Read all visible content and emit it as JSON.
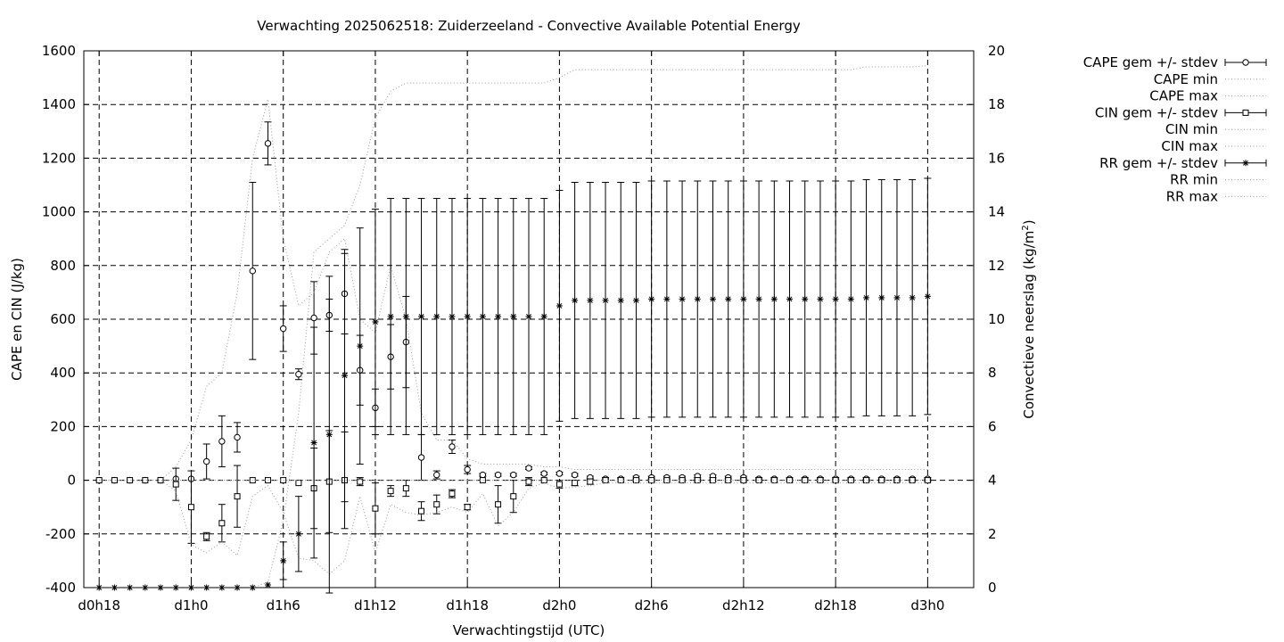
{
  "chart_data": {
    "type": "line",
    "title": "Verwachting 2025062518: Zuiderzeeland - Convective Available Potential Energy",
    "xlabel": "Verwachtingstijd (UTC)",
    "ylabel": "CAPE en CIN (J/kg)",
    "y2label_main": "Convectieve neerslag (kg/m",
    "y2label_sup": "2",
    "y2label_end": ")",
    "x_unit": "forecast hour (0 = d0h18)",
    "xlim": [
      -1,
      57
    ],
    "ylim": [
      -400,
      1600
    ],
    "y2lim": [
      0,
      20
    ],
    "grid": true,
    "legend_position": "outside-right",
    "x_ticks": [
      {
        "x": 0,
        "label": "d0h18"
      },
      {
        "x": 6,
        "label": "d1h0"
      },
      {
        "x": 12,
        "label": "d1h6"
      },
      {
        "x": 18,
        "label": "d1h12"
      },
      {
        "x": 24,
        "label": "d1h18"
      },
      {
        "x": 30,
        "label": "d2h0"
      },
      {
        "x": 36,
        "label": "d2h6"
      },
      {
        "x": 42,
        "label": "d2h12"
      },
      {
        "x": 48,
        "label": "d2h18"
      },
      {
        "x": 54,
        "label": "d3h0"
      }
    ],
    "y_ticks": [
      -400,
      -200,
      0,
      200,
      400,
      600,
      800,
      1000,
      1200,
      1400,
      1600
    ],
    "y2_ticks": [
      0,
      2,
      4,
      6,
      8,
      10,
      12,
      14,
      16,
      18,
      20
    ],
    "x": [
      0,
      1,
      2,
      3,
      4,
      5,
      6,
      7,
      8,
      9,
      10,
      11,
      12,
      13,
      14,
      15,
      16,
      17,
      18,
      19,
      20,
      21,
      22,
      23,
      24,
      25,
      26,
      27,
      28,
      29,
      30,
      31,
      32,
      33,
      34,
      35,
      36,
      37,
      38,
      39,
      40,
      41,
      42,
      43,
      44,
      45,
      46,
      47,
      48,
      49,
      50,
      51,
      52,
      53,
      54
    ],
    "series": [
      {
        "name": "CAPE gem +/- stdev",
        "axis": "y1",
        "marker": "circle",
        "style": "errorbars",
        "values": [
          0,
          0,
          0,
          0,
          0,
          5,
          5,
          70,
          145,
          160,
          780,
          1255,
          565,
          395,
          605,
          615,
          695,
          410,
          270,
          460,
          515,
          85,
          20,
          125,
          40,
          20,
          20,
          20,
          45,
          25,
          25,
          20,
          10,
          5,
          5,
          10,
          10,
          10,
          10,
          15,
          15,
          10,
          10,
          5,
          5,
          5,
          5,
          5,
          5,
          5,
          5,
          5,
          5,
          5,
          5
        ],
        "stdev": [
          0,
          0,
          0,
          0,
          0,
          0,
          0,
          65,
          95,
          55,
          330,
          80,
          85,
          20,
          135,
          60,
          150,
          130,
          70,
          120,
          170,
          85,
          15,
          25,
          15,
          5,
          5,
          5,
          5,
          5,
          5,
          5,
          5,
          5,
          5,
          5,
          5,
          5,
          5,
          5,
          5,
          5,
          5,
          5,
          5,
          5,
          5,
          5,
          5,
          5,
          5,
          5,
          5,
          5,
          5
        ]
      },
      {
        "name": "CAPE min",
        "axis": "y1",
        "style": "dotted",
        "values": [
          0,
          0,
          0,
          0,
          0,
          0,
          0,
          0,
          0,
          0,
          0,
          0,
          0,
          0,
          0,
          0,
          0,
          0,
          0,
          0,
          0,
          0,
          0,
          0,
          0,
          0,
          0,
          0,
          0,
          0,
          0,
          0,
          0,
          0,
          0,
          0,
          0,
          0,
          0,
          0,
          0,
          0,
          0,
          0,
          0,
          0,
          0,
          0,
          0,
          0,
          0,
          0,
          0,
          0,
          0
        ]
      },
      {
        "name": "CAPE max",
        "axis": "y1",
        "style": "dotted",
        "values": [
          0,
          0,
          0,
          0,
          0,
          50,
          150,
          350,
          400,
          700,
          1200,
          1420,
          900,
          650,
          700,
          850,
          900,
          600,
          550,
          800,
          600,
          250,
          150,
          150,
          80,
          60,
          60,
          60,
          60,
          50,
          50,
          40,
          40,
          40,
          40,
          40,
          40,
          40,
          40,
          40,
          40,
          40,
          40,
          40,
          40,
          40,
          40,
          40,
          40,
          40,
          40,
          40,
          40,
          40,
          40
        ]
      },
      {
        "name": "CIN gem +/- stdev",
        "axis": "y1",
        "marker": "square",
        "style": "errorbars",
        "values": [
          0,
          0,
          0,
          0,
          0,
          -15,
          -100,
          -210,
          -160,
          -60,
          0,
          0,
          0,
          -10,
          -30,
          -5,
          0,
          -5,
          -105,
          -40,
          -30,
          -115,
          -90,
          -50,
          -100,
          0,
          -90,
          -60,
          -5,
          0,
          -15,
          -10,
          -5,
          0,
          0,
          0,
          0,
          0,
          0,
          0,
          0,
          0,
          0,
          0,
          0,
          0,
          0,
          0,
          0,
          0,
          0,
          0,
          0,
          0,
          0
        ],
        "stdev": [
          0,
          0,
          0,
          0,
          0,
          60,
          135,
          15,
          70,
          115,
          0,
          0,
          0,
          0,
          150,
          190,
          180,
          15,
          95,
          20,
          30,
          35,
          35,
          15,
          10,
          0,
          70,
          60,
          15,
          0,
          15,
          10,
          10,
          5,
          5,
          5,
          5,
          5,
          5,
          5,
          5,
          5,
          5,
          5,
          5,
          5,
          5,
          5,
          5,
          5,
          5,
          5,
          5,
          5,
          5
        ]
      },
      {
        "name": "CIN min",
        "axis": "y1",
        "style": "dotted",
        "values": [
          0,
          0,
          0,
          0,
          0,
          -40,
          -240,
          -270,
          -230,
          -280,
          -60,
          -20,
          -120,
          -290,
          -300,
          -350,
          -300,
          -60,
          -270,
          -90,
          -120,
          -130,
          -120,
          -100,
          -120,
          -50,
          -170,
          -120,
          -30,
          -10,
          -30,
          -25,
          -20,
          -10,
          -10,
          -10,
          -10,
          -10,
          -10,
          -10,
          -10,
          -10,
          -10,
          -10,
          -10,
          -10,
          -10,
          -10,
          -10,
          -10,
          -10,
          -10,
          -10,
          -10,
          -10
        ]
      },
      {
        "name": "CIN max",
        "axis": "y1",
        "style": "dotted",
        "values": [
          0,
          0,
          0,
          0,
          0,
          0,
          0,
          0,
          0,
          0,
          0,
          0,
          0,
          0,
          0,
          0,
          0,
          0,
          0,
          0,
          0,
          0,
          0,
          0,
          0,
          0,
          0,
          0,
          0,
          0,
          0,
          0,
          0,
          0,
          0,
          0,
          0,
          0,
          0,
          0,
          0,
          0,
          0,
          0,
          0,
          0,
          0,
          0,
          0,
          0,
          0,
          0,
          0,
          0,
          0
        ]
      },
      {
        "name": "RR gem +/- stdev",
        "axis": "y2",
        "marker": "star",
        "style": "errorbars",
        "values": [
          0,
          0,
          0,
          0,
          0,
          0,
          0,
          0,
          0,
          0,
          0,
          0.1,
          1.0,
          2.0,
          5.4,
          5.7,
          7.9,
          9.0,
          9.9,
          10.1,
          10.1,
          10.1,
          10.1,
          10.1,
          10.1,
          10.1,
          10.1,
          10.1,
          10.1,
          10.1,
          10.5,
          10.7,
          10.7,
          10.7,
          10.7,
          10.7,
          10.75,
          10.75,
          10.75,
          10.75,
          10.75,
          10.75,
          10.75,
          10.75,
          10.75,
          10.75,
          10.75,
          10.75,
          10.75,
          10.75,
          10.8,
          10.8,
          10.8,
          10.8,
          10.85
        ],
        "stdev": [
          0,
          0,
          0,
          0,
          0,
          0,
          0,
          0,
          0,
          0,
          0,
          0,
          0.7,
          1.4,
          4.3,
          5.9,
          4.7,
          4.4,
          4.2,
          4.4,
          4.4,
          4.4,
          4.4,
          4.4,
          4.4,
          4.4,
          4.4,
          4.4,
          4.4,
          4.4,
          4.3,
          4.4,
          4.4,
          4.4,
          4.4,
          4.4,
          4.4,
          4.4,
          4.4,
          4.4,
          4.4,
          4.4,
          4.4,
          4.4,
          4.4,
          4.4,
          4.4,
          4.4,
          4.4,
          4.4,
          4.4,
          4.4,
          4.4,
          4.4,
          4.4
        ]
      },
      {
        "name": "RR min",
        "axis": "y2",
        "style": "dotted",
        "values": [
          0,
          0,
          0,
          0,
          0,
          0,
          0,
          0,
          0,
          0,
          0,
          0,
          0,
          0,
          0,
          0,
          0,
          0,
          0,
          0,
          0,
          0,
          0,
          0,
          0,
          0,
          0,
          0,
          0,
          0,
          0,
          0,
          0,
          0,
          0,
          0,
          0,
          0,
          0,
          0,
          0,
          0,
          0,
          0,
          0,
          0,
          0,
          0,
          0,
          0,
          0,
          0,
          0,
          0,
          0
        ]
      },
      {
        "name": "RR max",
        "axis": "y2",
        "style": "dotted",
        "values": [
          0,
          0,
          0,
          0,
          0,
          0,
          0,
          0,
          0,
          0,
          0,
          0.2,
          2.5,
          6.5,
          12.5,
          13.0,
          13.5,
          15.0,
          17.5,
          18.5,
          18.8,
          18.8,
          18.8,
          18.8,
          18.8,
          18.8,
          18.8,
          18.8,
          18.8,
          18.8,
          19.0,
          19.3,
          19.3,
          19.3,
          19.3,
          19.3,
          19.3,
          19.3,
          19.3,
          19.3,
          19.3,
          19.3,
          19.3,
          19.3,
          19.3,
          19.3,
          19.3,
          19.3,
          19.3,
          19.3,
          19.4,
          19.4,
          19.4,
          19.4,
          19.45
        ]
      }
    ]
  }
}
